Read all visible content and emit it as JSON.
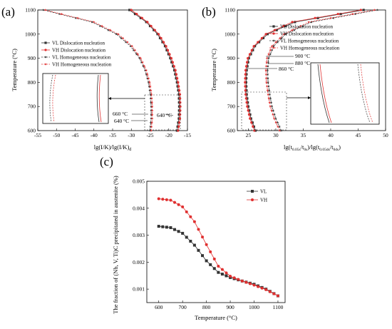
{
  "colors": {
    "vl": "#333333",
    "vh": "#e03030",
    "axis": "#000000"
  },
  "chart_data": [
    {
      "id": "a",
      "type": "line",
      "panel_label": "(a)",
      "xlabel": "lg(I/K)/lg(I/K)d",
      "xlabel_main": "lg(I/K)/lg(I/K)",
      "xlabel_sub": "d",
      "ylabel": "Temperature (°C)",
      "xlim": [
        -55,
        -15
      ],
      "ylim": [
        600,
        1100
      ],
      "xticks": [
        "-55",
        "-50",
        "-45",
        "-40",
        "-35",
        "-30",
        "-25",
        "-20",
        "-15"
      ],
      "yticks": [
        "600",
        "700",
        "800",
        "900",
        "1000",
        "1100"
      ],
      "legend_placement": "upper-left",
      "legend": [
        "VL Dislocation nucleation",
        "VH Dislocation nucleation",
        "VL Homogeneous nucleation",
        "VH Homogeneous nucleation"
      ],
      "annotations": [
        "660 °C",
        "640 °C",
        "640 °C"
      ],
      "series": [
        {
          "name": "VL Dislocation nucleation",
          "style": "solid-square",
          "color": "vl",
          "x": [
            -17.8,
            -17.3,
            -17.2,
            -17.3,
            -17.8,
            -18.5,
            -19.6,
            -21.0,
            -23.0,
            -26.0,
            -30.5
          ],
          "y": [
            600,
            650,
            700,
            750,
            800,
            850,
            900,
            950,
            1000,
            1050,
            1100
          ]
        },
        {
          "name": "VH Dislocation nucleation",
          "style": "solid-circle",
          "color": "vh",
          "x": [
            -17.5,
            -17.0,
            -16.9,
            -17.0,
            -17.5,
            -18.2,
            -19.3,
            -20.7,
            -22.7,
            -25.7,
            -30.0
          ],
          "y": [
            600,
            650,
            700,
            750,
            800,
            850,
            900,
            950,
            1000,
            1050,
            1100
          ]
        },
        {
          "name": "VL Homogeneous nucleation",
          "style": "dash-star",
          "color": "vl",
          "x": [
            -25.0,
            -24.7,
            -24.7,
            -24.9,
            -25.4,
            -26.3,
            -27.8,
            -30.2,
            -34.0,
            -40.5,
            -53.5
          ],
          "y": [
            600,
            650,
            700,
            750,
            800,
            850,
            900,
            950,
            1000,
            1050,
            1100
          ]
        },
        {
          "name": "VH Homogeneous nucleation",
          "style": "dash-star",
          "color": "vh",
          "x": [
            -24.7,
            -24.4,
            -24.4,
            -24.6,
            -25.1,
            -26.0,
            -27.5,
            -29.8,
            -33.5,
            -40.0,
            -53.0
          ],
          "y": [
            600,
            650,
            700,
            750,
            800,
            850,
            900,
            950,
            1000,
            1050,
            1100
          ]
        }
      ]
    },
    {
      "id": "b",
      "type": "line",
      "panel_label": "(b)",
      "xlabel": "lg(t0.05s/t0s)/lg(t0.05ds/t0ds)",
      "xlabel_parts": [
        "lg(t",
        "0.05s",
        "/t",
        "0s",
        ")/lg(t",
        "0.05ds",
        "/t",
        "0ds",
        ")"
      ],
      "ylabel": "Temperature (°C)",
      "xlim": [
        23,
        50
      ],
      "ylim": [
        600,
        1100
      ],
      "xticks": [
        "25",
        "30",
        "35",
        "40",
        "45",
        "50"
      ],
      "yticks": [
        "600",
        "700",
        "800",
        "900",
        "1000",
        "1100"
      ],
      "legend_placement": "upper-right",
      "legend": [
        "VL Dislocation nucleation",
        "VH Dislocation nucleation",
        "VL Homogeneous nucleation",
        "VH Homogeneous nucleation"
      ],
      "annotations": [
        "900 °C",
        "880 °C",
        "860 °C"
      ],
      "series": [
        {
          "name": "VL Dislocation nucleation",
          "style": "solid-square",
          "color": "vl",
          "x": [
            26.3,
            25.5,
            25.0,
            24.7,
            24.6,
            24.7,
            25.1,
            26.2,
            28.5,
            33.5,
            46.0
          ],
          "y": [
            600,
            650,
            700,
            750,
            800,
            850,
            900,
            950,
            1000,
            1050,
            1100
          ]
        },
        {
          "name": "VH Dislocation nucleation",
          "style": "solid-circle",
          "color": "vh",
          "x": [
            26.1,
            25.3,
            24.8,
            24.5,
            24.4,
            24.5,
            24.9,
            26.0,
            28.2,
            33.0,
            45.5
          ],
          "y": [
            600,
            650,
            700,
            750,
            800,
            850,
            900,
            950,
            1000,
            1050,
            1100
          ]
        },
        {
          "name": "VL Homogeneous nucleation",
          "style": "dash-star",
          "color": "vl",
          "x": [
            31.0,
            30.0,
            29.3,
            28.9,
            28.6,
            28.5,
            28.7,
            29.6,
            31.8,
            36.5,
            48.5
          ],
          "y": [
            600,
            650,
            700,
            750,
            800,
            850,
            900,
            950,
            1000,
            1050,
            1100
          ]
        },
        {
          "name": "VH Homogeneous nucleation",
          "style": "dash-star",
          "color": "vh",
          "x": [
            30.7,
            29.7,
            29.0,
            28.6,
            28.3,
            28.2,
            28.4,
            29.3,
            31.5,
            36.0,
            48.0
          ],
          "y": [
            600,
            650,
            700,
            750,
            800,
            850,
            900,
            950,
            1000,
            1050,
            1100
          ]
        }
      ]
    },
    {
      "id": "c",
      "type": "line",
      "panel_label": "(c)",
      "xlabel": "Temperature (°C)",
      "ylabel": "The fraction of (Nb, V, Ti)C precipitated in austenite (%)",
      "xlim": [
        550,
        1130
      ],
      "ylim": [
        0.0005,
        0.005
      ],
      "xticks": [
        "600",
        "700",
        "800",
        "900",
        "1000",
        "1100"
      ],
      "yticks": [
        "0.001",
        "0.002",
        "0.003",
        "0.004",
        "0.005"
      ],
      "legend_placement": "upper-right",
      "legend": [
        "VL",
        "VH"
      ],
      "series": [
        {
          "name": "VL",
          "style": "solid-square",
          "color": "vl",
          "x": [
            600,
            650,
            700,
            750,
            800,
            850,
            900,
            950,
            1000,
            1050,
            1100
          ],
          "y": [
            0.00333,
            0.00328,
            0.00307,
            0.00263,
            0.00205,
            0.00162,
            0.00143,
            0.0013,
            0.00118,
            0.001,
            0.00075
          ]
        },
        {
          "name": "VH",
          "style": "solid-circle",
          "color": "vh",
          "x": [
            600,
            650,
            700,
            750,
            800,
            850,
            900,
            950,
            1000,
            1050,
            1100
          ],
          "y": [
            0.00435,
            0.0043,
            0.00405,
            0.0035,
            0.00265,
            0.00185,
            0.00148,
            0.0013,
            0.00115,
            0.00098,
            0.00075
          ]
        }
      ]
    }
  ]
}
